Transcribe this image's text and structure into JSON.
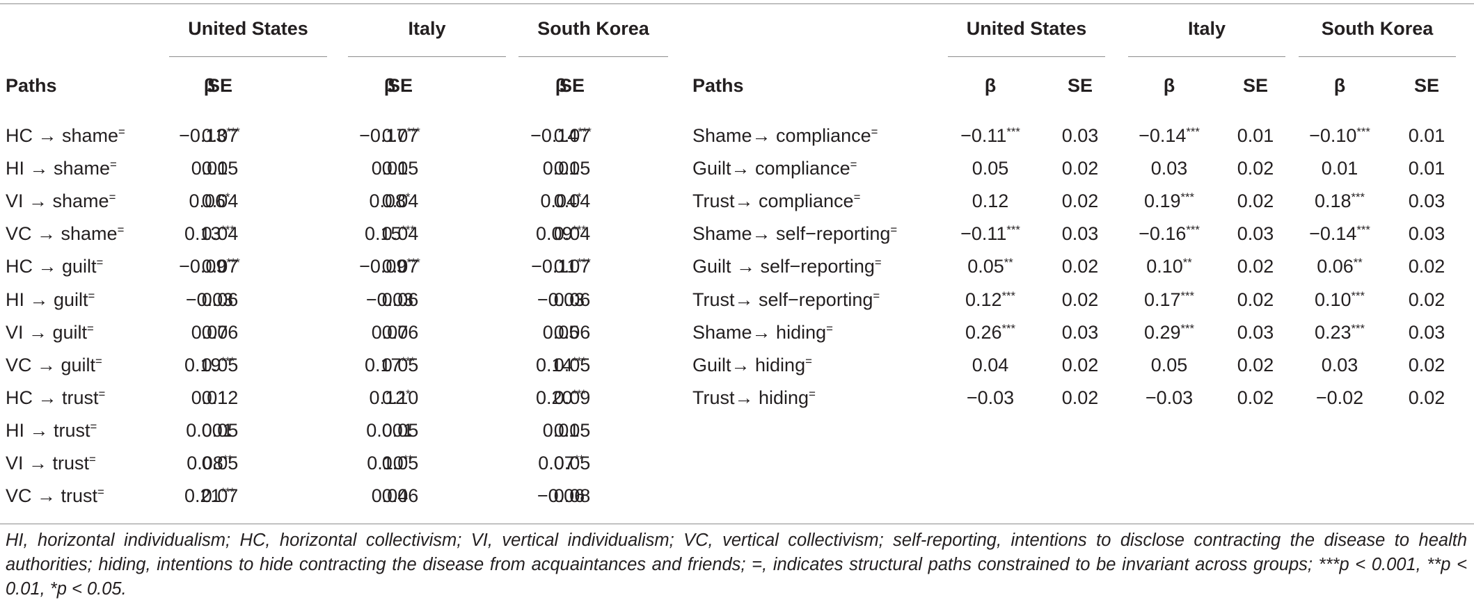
{
  "header": {
    "groups": [
      "United States",
      "Italy",
      "South Korea"
    ],
    "paths_label": "Paths",
    "beta_label": "β",
    "se_label": "SE"
  },
  "left_rows": [
    {
      "path": "HC → shame",
      "mark": "=",
      "us_b": "−0.13",
      "us_s": "***",
      "us_se": "0.07",
      "it_b": "−0.17",
      "it_s": "***",
      "it_se": "0.07",
      "kr_b": "−0.14",
      "kr_s": "***",
      "kr_se": "0.07"
    },
    {
      "path": "HI → shame",
      "mark": "=",
      "us_b": "0.01",
      "us_s": "",
      "us_se": "0.05",
      "it_b": "0.01",
      "it_s": "",
      "it_se": "0.05",
      "kr_b": "0.01",
      "kr_s": "",
      "kr_se": "0.05"
    },
    {
      "path": "VI → shame",
      "mark": "=",
      "us_b": "0.06",
      "us_s": "*",
      "us_se": "0.04",
      "it_b": "0.08",
      "it_s": "*",
      "it_se": "0.04",
      "kr_b": "0.04",
      "kr_s": "*",
      "kr_se": "0.04"
    },
    {
      "path": "VC → shame",
      "mark": "=",
      "us_b": "0.13",
      "us_s": "***",
      "us_se": "0.04",
      "it_b": "0.15",
      "it_s": "***",
      "it_se": "0.04",
      "kr_b": "0.09",
      "kr_s": "***",
      "kr_se": "0.04"
    },
    {
      "path": "HC → guilt",
      "mark": "=",
      "us_b": "−0.09",
      "us_s": "***",
      "us_se": "0.07",
      "it_b": "−0.09",
      "it_s": "***",
      "it_se": "0.07",
      "kr_b": "−0.11",
      "kr_s": "***",
      "kr_se": "0.07"
    },
    {
      "path": "HI → guilt",
      "mark": "=",
      "us_b": "−0.03",
      "us_s": "",
      "us_se": "0.06",
      "it_b": "−0.03",
      "it_s": "",
      "it_se": "0.06",
      "kr_b": "−0.03",
      "kr_s": "",
      "kr_se": "0.06"
    },
    {
      "path": "VI → guilt",
      "mark": "=",
      "us_b": "0.07",
      "us_s": "",
      "us_se": "0.06",
      "it_b": "0.07",
      "it_s": "",
      "it_se": "0.06",
      "kr_b": "0.05",
      "kr_s": "",
      "kr_se": "0.06"
    },
    {
      "path": "VC → guilt",
      "mark": "=",
      "us_b": "0.19",
      "us_s": "***",
      "us_se": "0.05",
      "it_b": "0.17",
      "it_s": "***",
      "it_se": "0.05",
      "kr_b": "0.14",
      "kr_s": "***",
      "kr_se": "0.05"
    },
    {
      "path": "HC → trust",
      "mark": "=",
      "us_b": "0.01",
      "us_s": "",
      "us_se": "0.12",
      "it_b": "0.12",
      "it_s": "*",
      "it_se": "0.10",
      "kr_b": "0.20",
      "kr_s": "***",
      "kr_se": "0.09"
    },
    {
      "path": "HI → trust",
      "mark": "=",
      "us_b": "0.001",
      "us_s": "",
      "us_se": "0.05",
      "it_b": "0.001",
      "it_s": "",
      "it_se": "0.05",
      "kr_b": "0.01",
      "kr_s": "",
      "kr_se": "0.05"
    },
    {
      "path": "VI → trust",
      "mark": "=",
      "us_b": "0.08",
      "us_s": "**",
      "us_se": "0.05",
      "it_b": "0.10",
      "it_s": "**",
      "it_se": "0.05",
      "kr_b": "0.07",
      "kr_s": "**",
      "kr_se": "0.05"
    },
    {
      "path": "VC → trust",
      "mark": "=",
      "us_b": "0.21",
      "us_s": "***",
      "us_se": "0.07",
      "it_b": "0.04",
      "it_s": "",
      "it_se": "0.06",
      "kr_b": "−0.06",
      "kr_s": "",
      "kr_se": "0.08"
    }
  ],
  "right_rows": [
    {
      "path": "Shame→ compliance",
      "mark": "=",
      "us_b": "−0.11",
      "us_s": "***",
      "us_se": "0.03",
      "it_b": "−0.14",
      "it_s": "***",
      "it_se": "0.01",
      "kr_b": "−0.10",
      "kr_s": "***",
      "kr_se": "0.01"
    },
    {
      "path": "Guilt→ compliance",
      "mark": "=",
      "us_b": "0.05",
      "us_s": "",
      "us_se": "0.02",
      "it_b": "0.03",
      "it_s": "",
      "it_se": "0.02",
      "kr_b": "0.01",
      "kr_s": "",
      "kr_se": "0.01"
    },
    {
      "path": "Trust→ compliance",
      "mark": "=",
      "us_b": "0.12",
      "us_s": "",
      "us_se": "0.02",
      "it_b": "0.19",
      "it_s": "***",
      "it_se": "0.02",
      "kr_b": "0.18",
      "kr_s": "***",
      "kr_se": "0.03"
    },
    {
      "path": "Shame→ self−reporting",
      "mark": "=",
      "us_b": "−0.11",
      "us_s": "***",
      "us_se": "0.03",
      "it_b": "−0.16",
      "it_s": "***",
      "it_se": "0.03",
      "kr_b": "−0.14",
      "kr_s": "***",
      "kr_se": "0.03"
    },
    {
      "path": "Guilt → self−reporting",
      "mark": "=",
      "us_b": "0.05",
      "us_s": "**",
      "us_se": "0.02",
      "it_b": "0.10",
      "it_s": "**",
      "it_se": "0.02",
      "kr_b": "0.06",
      "kr_s": "**",
      "kr_se": "0.02"
    },
    {
      "path": "Trust→ self−reporting",
      "mark": "=",
      "us_b": "0.12",
      "us_s": "***",
      "us_se": "0.02",
      "it_b": "0.17",
      "it_s": "***",
      "it_se": "0.02",
      "kr_b": "0.10",
      "kr_s": "***",
      "kr_se": "0.02"
    },
    {
      "path": "Shame→ hiding",
      "mark": "=",
      "us_b": "0.26",
      "us_s": "***",
      "us_se": "0.03",
      "it_b": "0.29",
      "it_s": "***",
      "it_se": "0.03",
      "kr_b": "0.23",
      "kr_s": "***",
      "kr_se": "0.03"
    },
    {
      "path": "Guilt→ hiding",
      "mark": "=",
      "us_b": "0.04",
      "us_s": "",
      "us_se": "0.02",
      "it_b": "0.05",
      "it_s": "",
      "it_se": "0.02",
      "kr_b": "0.03",
      "kr_s": "",
      "kr_se": "0.02"
    },
    {
      "path": "Trust→ hiding",
      "mark": "=",
      "us_b": "−0.03",
      "us_s": "",
      "us_se": "0.02",
      "it_b": "−0.03",
      "it_s": "",
      "it_se": "0.02",
      "kr_b": "−0.02",
      "kr_s": "",
      "kr_se": "0.02"
    }
  ],
  "footnote": "HI, horizontal individualism; HC, horizontal collectivism; VI, vertical individualism; VC, vertical collectivism; self-reporting, intentions to disclose contracting the disease to health authorities; hiding, intentions to hide contracting the disease from acquaintances and friends; =, indicates structural paths constrained to be invariant across groups; ***p < 0.001, **p < 0.01, *p < 0.05."
}
